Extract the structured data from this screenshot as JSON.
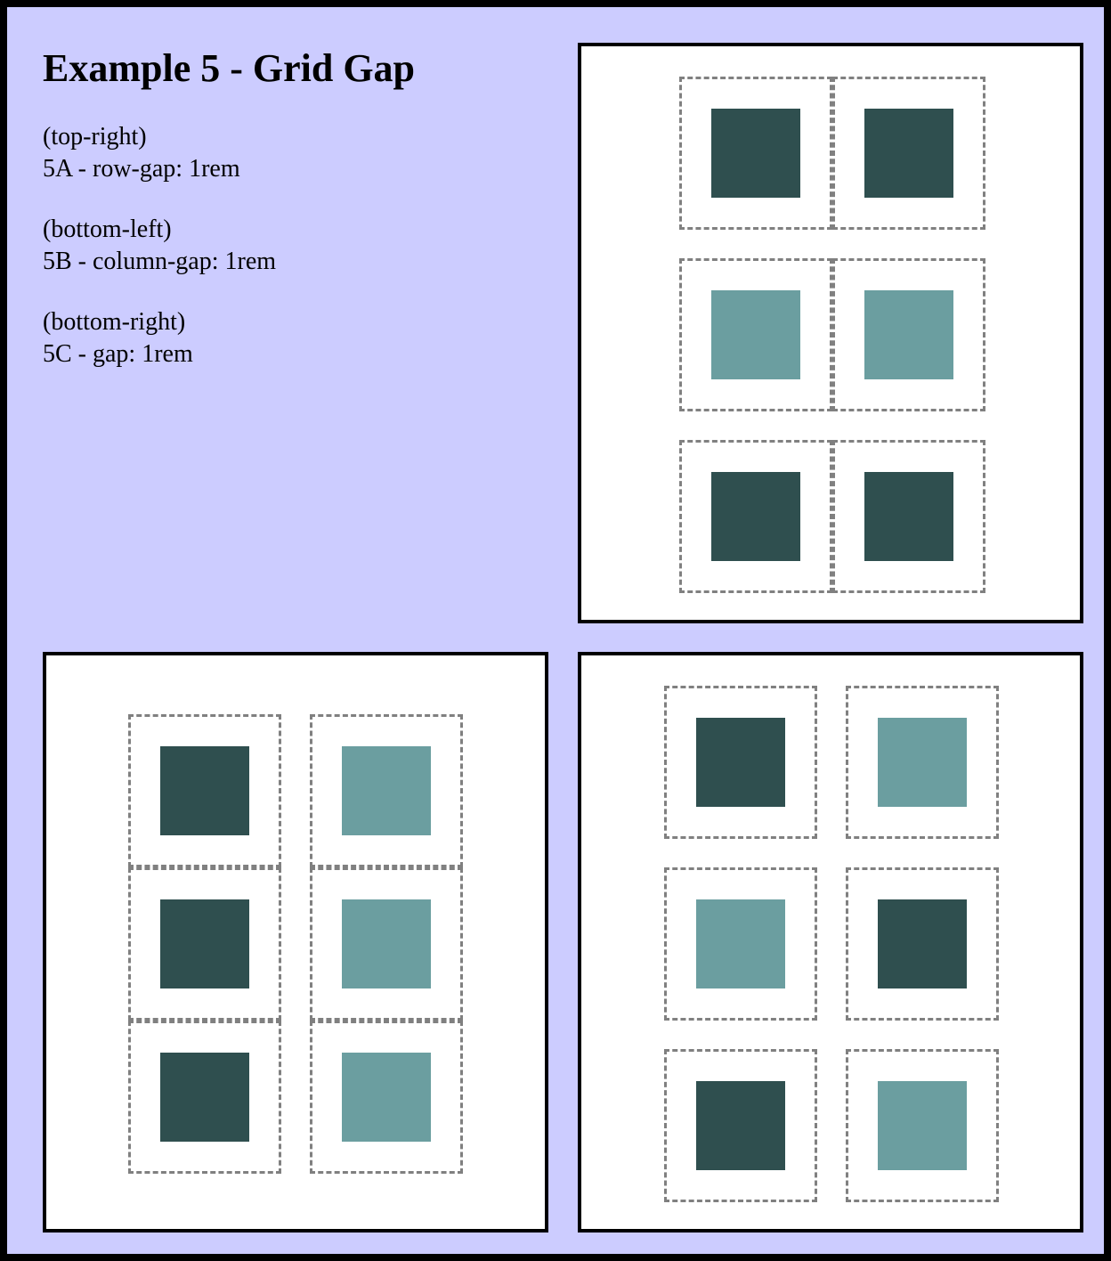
{
  "title": "Example 5 - Grid Gap",
  "notes": [
    {
      "position": "(top-right)",
      "label": "5A - row-gap: 1rem"
    },
    {
      "position": "(bottom-left)",
      "label": "5B - column-gap: 1rem"
    },
    {
      "position": "(bottom-right)",
      "label": "5C - gap: 1rem"
    }
  ],
  "colors": {
    "background": "#ccccff",
    "dark_square": "#2f4f4f",
    "light_square": "#6b9ea0",
    "dashed_border": "#808080"
  },
  "panels": [
    {
      "id": "5A",
      "cells": [
        "dark",
        "dark",
        "light",
        "light",
        "dark",
        "dark"
      ]
    },
    {
      "id": "5B",
      "cells": [
        "dark",
        "light",
        "dark",
        "light",
        "dark",
        "light"
      ]
    },
    {
      "id": "5C",
      "cells": [
        "dark",
        "light",
        "light",
        "dark",
        "dark",
        "light"
      ]
    }
  ]
}
